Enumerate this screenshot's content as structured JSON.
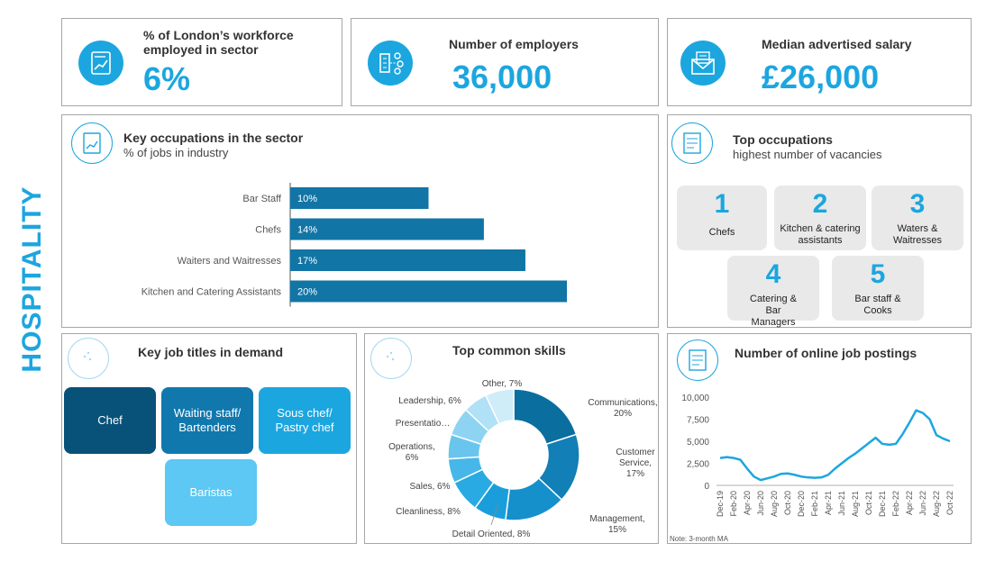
{
  "sector_title": "HOSPITALITY",
  "kpis": [
    {
      "label": "% of London’s workforce employed in sector",
      "value": "6%",
      "icon": "chart-document-icon"
    },
    {
      "label": "Number of employers",
      "value": "36,000",
      "icon": "building-network-icon"
    },
    {
      "label": "Median advertised salary",
      "value": "£26,000",
      "icon": "envelope-letter-icon"
    }
  ],
  "key_occupations": {
    "title": "Key occupations in the sector",
    "subtitle": "% of jobs in industry"
  },
  "top_occupations": {
    "title": "Top occupations",
    "subtitle": "highest number of vacancies",
    "items": [
      {
        "rank": "1",
        "name": "Chefs"
      },
      {
        "rank": "2",
        "name": "Kitchen & catering assistants"
      },
      {
        "rank": "3",
        "name": "Waters & Waitresses"
      },
      {
        "rank": "4",
        "name": "Catering & Bar Managers"
      },
      {
        "rank": "5",
        "name": "Bar staff & Cooks"
      }
    ]
  },
  "job_titles": {
    "title": "Key job titles in demand",
    "tiles": [
      {
        "label": "Chef",
        "color": "#08527a"
      },
      {
        "label": "Waiting staff/ Bartenders",
        "color": "#1178ad"
      },
      {
        "label": "Sous chef/ Pastry chef",
        "color": "#1ca6df"
      },
      {
        "label": "Baristas",
        "color": "#5cc8f3"
      }
    ]
  },
  "skills": {
    "title": "Top common skills"
  },
  "postings": {
    "title": "Number of online job postings",
    "note": "Note: 3-month MA"
  },
  "chart_data": [
    {
      "type": "bar",
      "orientation": "horizontal",
      "categories": [
        "Bar Staff",
        "Chefs",
        "Waiters and Waitresses",
        "Kitchen and Catering Assistants"
      ],
      "values": [
        10,
        14,
        17,
        20
      ],
      "value_labels": [
        "10%",
        "14%",
        "17%",
        "20%"
      ],
      "color": "#1175a6"
    },
    {
      "type": "pie",
      "variant": "donut",
      "slices": [
        {
          "label": "Communications, 20%",
          "value": 20,
          "color": "#0a6e9f"
        },
        {
          "label": "Customer Service, 17%",
          "value": 17,
          "color": "#127fb6"
        },
        {
          "label": "Management, 15%",
          "value": 15,
          "color": "#1690cb"
        },
        {
          "label": "Detail Oriented, 8%",
          "value": 8,
          "color": "#1a9edb"
        },
        {
          "label": "Cleanliness, 8%",
          "value": 8,
          "color": "#2aaae3"
        },
        {
          "label": "Sales, 6%",
          "value": 6,
          "color": "#46b7e8"
        },
        {
          "label": "Operations, 6%",
          "value": 6,
          "color": "#69c5ed"
        },
        {
          "label": "Presentatio…",
          "value": 7,
          "color": "#8ed4f2"
        },
        {
          "label": "Leadership, 6%",
          "value": 6,
          "color": "#b0e1f6"
        },
        {
          "label": "Other, 7%",
          "value": 7,
          "color": "#cfecf9"
        }
      ]
    },
    {
      "type": "line",
      "x": [
        "Dec-19",
        "Jan-20",
        "Feb-20",
        "Mar-20",
        "Apr-20",
        "May-20",
        "Jun-20",
        "Jul-20",
        "Aug-20",
        "Sep-20",
        "Oct-20",
        "Nov-20",
        "Dec-20",
        "Jan-21",
        "Feb-21",
        "Mar-21",
        "Apr-21",
        "May-21",
        "Jun-21",
        "Jul-21",
        "Aug-21",
        "Sep-21",
        "Oct-21",
        "Nov-21",
        "Dec-21",
        "Jan-22",
        "Feb-22",
        "Mar-22",
        "Apr-22",
        "May-22",
        "Jun-22",
        "Jul-22",
        "Aug-22",
        "Sep-22",
        "Oct-22"
      ],
      "y": [
        3100,
        3200,
        3100,
        2900,
        1900,
        1000,
        600,
        800,
        1000,
        1300,
        1350,
        1200,
        1000,
        900,
        850,
        900,
        1200,
        1900,
        2500,
        3100,
        3600,
        4200,
        4800,
        5400,
        4700,
        4600,
        4700,
        5800,
        7100,
        8500,
        8200,
        7500,
        5700,
        5300,
        5000
      ],
      "tick_labels": [
        "Dec-19",
        "Feb-20",
        "Apr-20",
        "Jun-20",
        "Aug-20",
        "Oct-20",
        "Dec-20",
        "Feb-21",
        "Apr-21",
        "Jun-21",
        "Aug-21",
        "Oct-21",
        "Dec-21",
        "Feb-22",
        "Apr-22",
        "Jun-22",
        "Aug-22",
        "Oct-22"
      ],
      "y_ticks": [
        0,
        2500,
        5000,
        7500,
        10000
      ],
      "y_tick_labels": [
        "0",
        "2,500",
        "5,000",
        "7,500",
        "10,000"
      ],
      "ylim": [
        0,
        10000
      ],
      "color": "#1ca6df"
    }
  ]
}
